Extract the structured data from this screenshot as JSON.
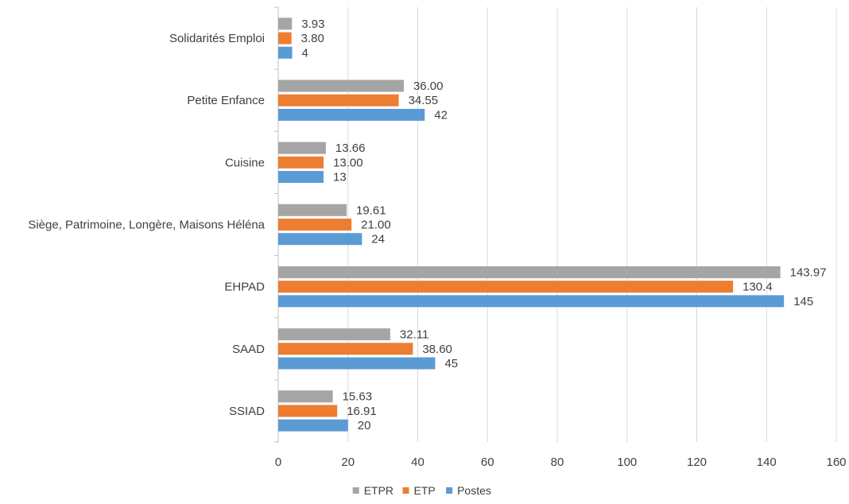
{
  "chart_data": {
    "type": "bar",
    "orientation": "horizontal",
    "categories": [
      "SSIAD",
      "SAAD",
      "EHPAD",
      "Siège, Patrimoine, Longère, Maisons Héléna",
      "Cuisine",
      "Petite Enfance",
      "Solidarités Emploi"
    ],
    "series": [
      {
        "name": "ETPR",
        "color": "#a5a5a5",
        "values": [
          15.63,
          32.11,
          143.97,
          19.61,
          13.66,
          36.0,
          3.93
        ],
        "labels": [
          "15.63",
          "32.11",
          "143.97",
          "19.61",
          "13.66",
          "36.00",
          "3.93"
        ]
      },
      {
        "name": "ETP",
        "color": "#ed7d31",
        "values": [
          16.91,
          38.6,
          130.4,
          21.0,
          13.0,
          34.55,
          3.8
        ],
        "labels": [
          "16.91",
          "38.60",
          "130.4",
          "21.00",
          "13.00",
          "34.55",
          "3.80"
        ]
      },
      {
        "name": "Postes",
        "color": "#5b9bd5",
        "values": [
          20,
          45,
          145,
          24,
          13,
          42,
          4
        ],
        "labels": [
          "20",
          "45",
          "145",
          "24",
          "13",
          "42",
          "4"
        ]
      }
    ],
    "xlim": [
      0,
      160
    ],
    "xticks": [
      0,
      20,
      40,
      60,
      80,
      100,
      120,
      140,
      160
    ],
    "grid": true,
    "legend_position": "bottom",
    "title": "",
    "xlabel": "",
    "ylabel": ""
  }
}
